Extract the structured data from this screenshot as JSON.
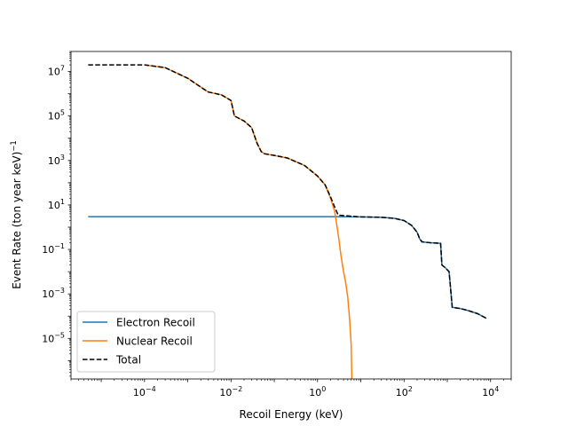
{
  "chart_data": {
    "type": "line",
    "title": "",
    "xlabel": "Recoil Energy (keV)",
    "ylabel": "Event Rate (ton year keV)",
    "ylabel_superscript": "−1",
    "x_scale": "log",
    "y_scale": "log",
    "xlim": [
      2e-06,
      30000
    ],
    "ylim": [
      1.5e-07,
      80000000
    ],
    "x_ticks": [
      {
        "value": 0.0001,
        "base": "10",
        "exp": "−4"
      },
      {
        "value": 0.01,
        "base": "10",
        "exp": "−2"
      },
      {
        "value": 1,
        "base": "10",
        "exp": "0"
      },
      {
        "value": 100,
        "base": "10",
        "exp": "2"
      },
      {
        "value": 10000,
        "base": "10",
        "exp": "4"
      }
    ],
    "y_ticks": [
      {
        "value": 1e-05,
        "base": "10",
        "exp": "−5"
      },
      {
        "value": 0.001,
        "base": "10",
        "exp": "−3"
      },
      {
        "value": 0.1,
        "base": "10",
        "exp": "−1"
      },
      {
        "value": 10,
        "base": "10",
        "exp": "1"
      },
      {
        "value": 1000,
        "base": "10",
        "exp": "3"
      },
      {
        "value": 100000,
        "base": "10",
        "exp": "5"
      },
      {
        "value": 10000000,
        "base": "10",
        "exp": "7"
      }
    ],
    "grid": false,
    "legend_position": "lower-left",
    "series": [
      {
        "name": "Electron Recoil",
        "color": "#1f77b4",
        "style": "solid",
        "points": [
          [
            5e-06,
            3.0
          ],
          [
            1,
            3.0
          ],
          [
            3,
            3.0
          ],
          [
            10,
            2.9
          ],
          [
            30,
            2.8
          ],
          [
            60,
            2.5
          ],
          [
            100,
            2.0
          ],
          [
            150,
            1.2
          ],
          [
            200,
            0.6
          ],
          [
            230,
            0.3
          ],
          [
            260,
            0.22
          ],
          [
            400,
            0.2
          ],
          [
            700,
            0.19
          ],
          [
            750,
            0.02
          ],
          [
            900,
            0.015
          ],
          [
            1100,
            0.01
          ],
          [
            1200,
            0.0015
          ],
          [
            1300,
            0.00025
          ],
          [
            2000,
            0.00022
          ],
          [
            3000,
            0.00018
          ],
          [
            5000,
            0.00013
          ],
          [
            8000,
            8e-05
          ]
        ]
      },
      {
        "name": "Nuclear Recoil",
        "color": "#ff7f0e",
        "style": "solid",
        "points": [
          [
            0.0001,
            20000000
          ],
          [
            0.0003,
            15000000
          ],
          [
            0.001,
            5000000
          ],
          [
            0.002,
            2000000
          ],
          [
            0.003,
            1200000
          ],
          [
            0.006,
            900000
          ],
          [
            0.01,
            500000
          ],
          [
            0.012,
            100000
          ],
          [
            0.02,
            60000
          ],
          [
            0.03,
            30000
          ],
          [
            0.04,
            6000
          ],
          [
            0.05,
            2500
          ],
          [
            0.06,
            2000
          ],
          [
            0.1,
            1700
          ],
          [
            0.2,
            1300
          ],
          [
            0.5,
            600
          ],
          [
            1,
            200
          ],
          [
            1.5,
            80
          ],
          [
            2,
            20
          ],
          [
            2.5,
            5
          ],
          [
            3,
            0.5
          ],
          [
            3.5,
            0.05
          ],
          [
            4,
            0.01
          ],
          [
            4.5,
            0.003
          ],
          [
            5,
            0.0007
          ],
          [
            5.5,
            8e-05
          ],
          [
            6,
            5e-06
          ],
          [
            6.2,
            1.5e-07
          ]
        ]
      },
      {
        "name": "Total",
        "color": "#000000",
        "style": "dashed",
        "points": [
          [
            5e-06,
            20000000
          ],
          [
            0.0001,
            20000000
          ],
          [
            0.0003,
            15000000
          ],
          [
            0.001,
            5000000
          ],
          [
            0.002,
            2000000
          ],
          [
            0.003,
            1200000
          ],
          [
            0.006,
            900000
          ],
          [
            0.01,
            500000
          ],
          [
            0.012,
            100000
          ],
          [
            0.02,
            60000
          ],
          [
            0.03,
            30000
          ],
          [
            0.04,
            6000
          ],
          [
            0.05,
            2500
          ],
          [
            0.06,
            2000
          ],
          [
            0.1,
            1700
          ],
          [
            0.2,
            1300
          ],
          [
            0.5,
            600
          ],
          [
            1,
            200
          ],
          [
            1.5,
            80
          ],
          [
            2,
            23
          ],
          [
            2.5,
            8
          ],
          [
            3,
            3.5
          ],
          [
            10,
            2.9
          ],
          [
            30,
            2.8
          ],
          [
            60,
            2.5
          ],
          [
            100,
            2.0
          ],
          [
            150,
            1.2
          ],
          [
            200,
            0.6
          ],
          [
            230,
            0.3
          ],
          [
            260,
            0.22
          ],
          [
            400,
            0.2
          ],
          [
            700,
            0.19
          ],
          [
            750,
            0.02
          ],
          [
            900,
            0.015
          ],
          [
            1100,
            0.01
          ],
          [
            1200,
            0.0015
          ],
          [
            1300,
            0.00025
          ],
          [
            2000,
            0.00022
          ],
          [
            3000,
            0.00018
          ],
          [
            5000,
            0.00013
          ],
          [
            8000,
            8e-05
          ]
        ]
      }
    ]
  }
}
